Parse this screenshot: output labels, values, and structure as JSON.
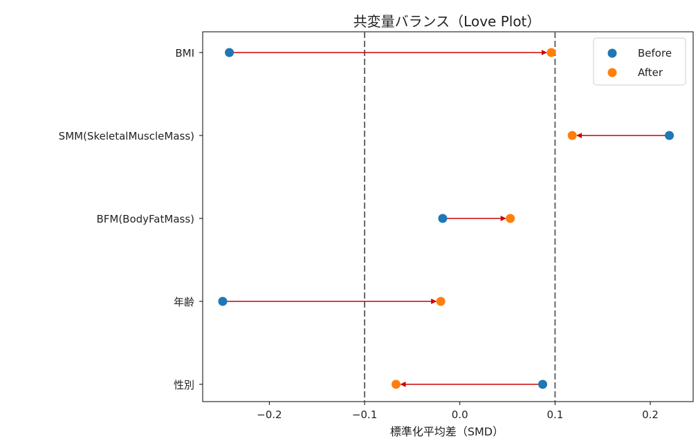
{
  "chart_data": {
    "type": "scatter",
    "title": "共変量バランス（Love Plot）",
    "xlabel": "標準化平均差（SMD）",
    "ylabel": "",
    "xlim": [
      -0.27,
      0.245
    ],
    "xticks": [
      -0.2,
      -0.1,
      0.0,
      0.1,
      0.2
    ],
    "xtick_labels": [
      "−0.2",
      "−0.1",
      "0.0",
      "0.1",
      "0.2"
    ],
    "threshold_lines": [
      -0.1,
      0.1
    ],
    "grid": false,
    "legend_position": "top-right",
    "categories": [
      "BMI",
      "SMM(SkeletalMuscleMass)",
      "BFM(BodyFatMass)",
      "年齢",
      "性別"
    ],
    "series": [
      {
        "name": "Before",
        "color": "#1f77b4",
        "values": [
          -0.242,
          0.22,
          -0.018,
          -0.249,
          0.087
        ]
      },
      {
        "name": "After",
        "color": "#ff7f0e",
        "values": [
          0.096,
          0.118,
          0.053,
          -0.02,
          -0.067
        ]
      }
    ],
    "arrow_color": "#cc0000"
  }
}
